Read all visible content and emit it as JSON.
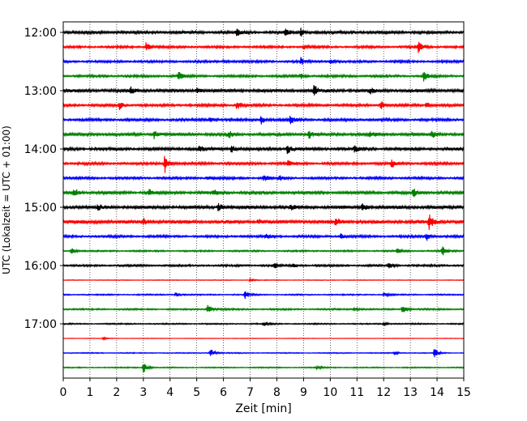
{
  "chart_data": {
    "type": "line",
    "subtype": "helicorder",
    "xlabel": "Zeit  [min]",
    "ylabel": "UTC (Lokalzeit = UTC + 01:00)",
    "xlim": [
      0,
      15
    ],
    "x_ticks": [
      "0",
      "1",
      "2",
      "3",
      "4",
      "5",
      "6",
      "7",
      "8",
      "9",
      "10",
      "11",
      "12",
      "13",
      "14",
      "15"
    ],
    "y_ticks": [
      {
        "label": "12:00",
        "row": 0
      },
      {
        "label": "13:00",
        "row": 4
      },
      {
        "label": "14:00",
        "row": 8
      },
      {
        "label": "15:00",
        "row": 12
      },
      {
        "label": "16:00",
        "row": 16
      },
      {
        "label": "17:00",
        "row": 20
      }
    ],
    "grid": "vertical-dotted",
    "row_interval_min": 15,
    "colors": [
      "#000000",
      "#ff0000",
      "#0000ff",
      "#008000"
    ],
    "rows": [
      {
        "start": "12:00",
        "color": "#000000",
        "noise": 0.9,
        "events": [
          [
            8.3,
            1.2
          ],
          [
            8.9,
            1.0
          ],
          [
            6.5,
            0.8
          ]
        ]
      },
      {
        "start": "12:15",
        "color": "#ff0000",
        "noise": 0.7,
        "events": [
          [
            3.1,
            1.2
          ],
          [
            13.3,
            1.5
          ],
          [
            9.0,
            0.6
          ]
        ]
      },
      {
        "start": "12:30",
        "color": "#0000ff",
        "noise": 0.7,
        "events": [
          [
            8.9,
            1.0
          ],
          [
            10.0,
            0.6
          ],
          [
            6.0,
            0.5
          ]
        ]
      },
      {
        "start": "12:45",
        "color": "#008000",
        "noise": 0.7,
        "events": [
          [
            4.3,
            1.3
          ],
          [
            8.9,
            0.8
          ],
          [
            13.5,
            1.3
          ]
        ]
      },
      {
        "start": "13:00",
        "color": "#000000",
        "noise": 1.0,
        "events": [
          [
            9.4,
            1.6
          ],
          [
            2.5,
            1.0
          ],
          [
            5.0,
            0.7
          ],
          [
            11.5,
            0.7
          ]
        ]
      },
      {
        "start": "13:15",
        "color": "#ff0000",
        "noise": 0.8,
        "events": [
          [
            2.1,
            1.2
          ],
          [
            6.5,
            1.4
          ],
          [
            11.9,
            1.3
          ],
          [
            13.6,
            0.8
          ]
        ]
      },
      {
        "start": "13:30",
        "color": "#0000ff",
        "noise": 0.8,
        "events": [
          [
            7.4,
            1.3
          ],
          [
            8.5,
            1.1
          ],
          [
            5.5,
            0.7
          ]
        ]
      },
      {
        "start": "13:45",
        "color": "#008000",
        "noise": 0.9,
        "events": [
          [
            3.4,
            1.1
          ],
          [
            6.2,
            0.9
          ],
          [
            9.2,
            1.1
          ],
          [
            11.5,
            0.8
          ],
          [
            13.8,
            1.0
          ]
        ]
      },
      {
        "start": "14:00",
        "color": "#000000",
        "noise": 0.9,
        "events": [
          [
            6.3,
            1.2
          ],
          [
            8.4,
            1.3
          ],
          [
            10.9,
            1.0
          ],
          [
            5.1,
            0.8
          ]
        ]
      },
      {
        "start": "14:15",
        "color": "#ff0000",
        "noise": 0.8,
        "events": [
          [
            3.8,
            2.6
          ],
          [
            8.4,
            0.8
          ],
          [
            12.3,
            1.1
          ]
        ]
      },
      {
        "start": "14:30",
        "color": "#0000ff",
        "noise": 0.7,
        "events": [
          [
            7.5,
            1.0
          ],
          [
            8.1,
            0.8
          ],
          [
            5.4,
            0.6
          ]
        ]
      },
      {
        "start": "14:45",
        "color": "#008000",
        "noise": 0.9,
        "events": [
          [
            0.4,
            1.3
          ],
          [
            3.2,
            1.0
          ],
          [
            5.6,
            0.9
          ],
          [
            13.1,
            1.4
          ]
        ]
      },
      {
        "start": "15:00",
        "color": "#000000",
        "noise": 1.0,
        "events": [
          [
            5.8,
            1.4
          ],
          [
            11.2,
            1.5
          ],
          [
            1.3,
            0.8
          ],
          [
            8.5,
            0.7
          ]
        ]
      },
      {
        "start": "15:15",
        "color": "#ff0000",
        "noise": 1.1,
        "events": [
          [
            10.2,
            1.3
          ],
          [
            13.7,
            1.9
          ],
          [
            3.0,
            0.9
          ],
          [
            7.3,
            0.8
          ]
        ]
      },
      {
        "start": "15:30",
        "color": "#0000ff",
        "noise": 0.7,
        "events": [
          [
            13.6,
            1.2
          ],
          [
            7.6,
            0.8
          ],
          [
            10.4,
            0.7
          ]
        ]
      },
      {
        "start": "15:45",
        "color": "#008000",
        "noise": 0.5,
        "events": [
          [
            14.2,
            1.3
          ],
          [
            0.3,
            0.8
          ],
          [
            12.5,
            0.7
          ]
        ]
      },
      {
        "start": "16:00",
        "color": "#000000",
        "noise": 0.6,
        "events": [
          [
            12.2,
            1.0
          ],
          [
            7.9,
            0.8
          ],
          [
            8.6,
            0.6
          ]
        ]
      },
      {
        "start": "16:15",
        "color": "#ff0000",
        "noise": 0.2,
        "events": [
          [
            7.0,
            0.4
          ]
        ]
      },
      {
        "start": "16:30",
        "color": "#0000ff",
        "noise": 0.4,
        "events": [
          [
            6.8,
            1.3
          ],
          [
            4.2,
            0.6
          ],
          [
            12.0,
            0.5
          ]
        ]
      },
      {
        "start": "16:45",
        "color": "#008000",
        "noise": 0.5,
        "events": [
          [
            5.4,
            1.5
          ],
          [
            12.7,
            1.2
          ],
          [
            10.9,
            0.6
          ]
        ]
      },
      {
        "start": "17:00",
        "color": "#000000",
        "noise": 0.4,
        "events": [
          [
            7.5,
            0.6
          ],
          [
            12.0,
            0.5
          ]
        ]
      },
      {
        "start": "17:15",
        "color": "#ff0000",
        "noise": 0.15,
        "events": [
          [
            1.5,
            0.4
          ]
        ]
      },
      {
        "start": "17:30",
        "color": "#0000ff",
        "noise": 0.3,
        "events": [
          [
            5.5,
            1.5
          ],
          [
            13.9,
            1.4
          ],
          [
            12.4,
            0.5
          ]
        ]
      },
      {
        "start": "17:45",
        "color": "#008000",
        "noise": 0.35,
        "events": [
          [
            3.0,
            1.6
          ],
          [
            9.5,
            0.5
          ]
        ]
      }
    ]
  }
}
